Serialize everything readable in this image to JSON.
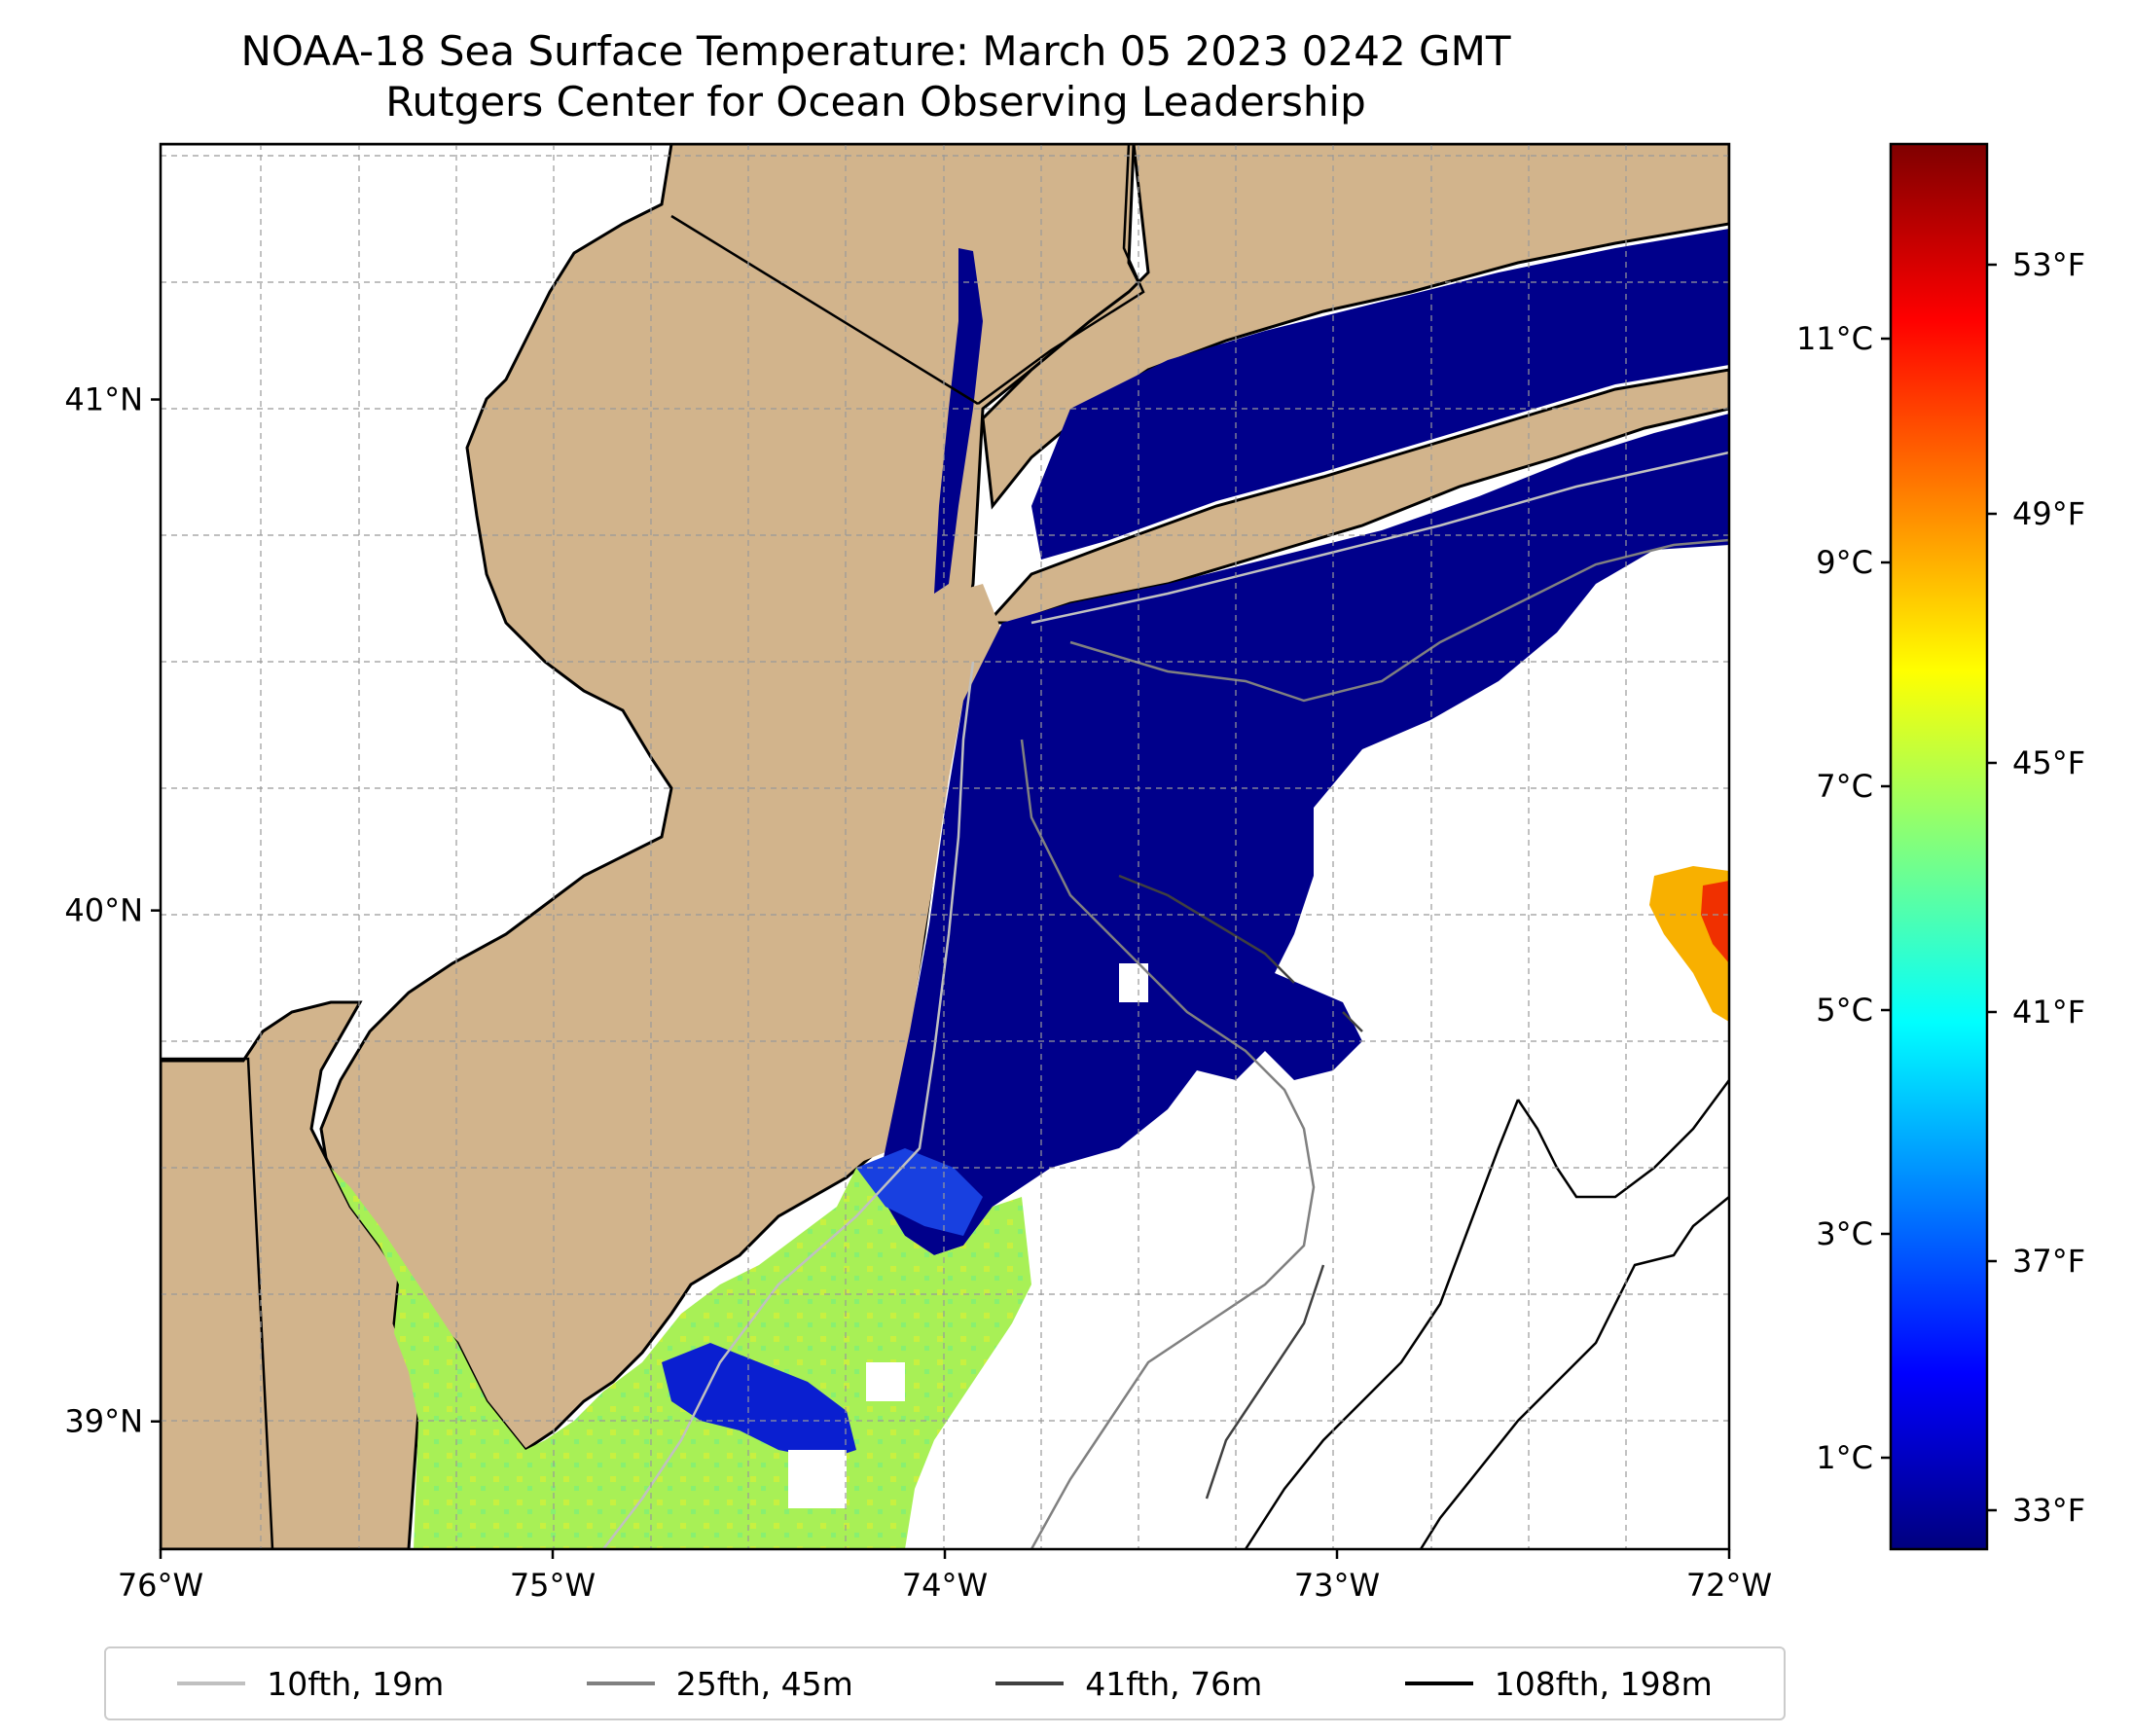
{
  "title": {
    "line1": "NOAA-18 Sea Surface Temperature: March 05 2023 0242 GMT",
    "line2": "Rutgers Center for Ocean Observing Leadership"
  },
  "map": {
    "lon_range": [
      -76,
      -72
    ],
    "lat_range": [
      38.75,
      41.5
    ],
    "lon_ticks": [
      {
        "value": -76,
        "label": "76°W"
      },
      {
        "value": -75,
        "label": "75°W"
      },
      {
        "value": -74,
        "label": "74°W"
      },
      {
        "value": -73,
        "label": "73°W"
      },
      {
        "value": -72,
        "label": "72°W"
      }
    ],
    "lat_ticks": [
      {
        "value": 39,
        "label": "39°N"
      },
      {
        "value": 40,
        "label": "40°N"
      },
      {
        "value": 41,
        "label": "41°N"
      }
    ],
    "colors": {
      "land": "#d2b48c",
      "no_data": "#ffffff",
      "cold_water": "#00008b",
      "warm_water": "#a8f056"
    }
  },
  "colorbar": {
    "colormap": "jet",
    "celsius_ticks": [
      "11°C",
      "9°C",
      "7°C",
      "5°C",
      "3°C",
      "1°C"
    ],
    "fahrenheit_ticks": [
      "53°F",
      "49°F",
      "45°F",
      "41°F",
      "37°F",
      "33°F"
    ]
  },
  "legend": [
    {
      "label": "10fth, 19m",
      "color": "#c0c0c0"
    },
    {
      "label": "25fth, 45m",
      "color": "#808080"
    },
    {
      "label": "41fth, 76m",
      "color": "#404040"
    },
    {
      "label": "108fth, 198m",
      "color": "#000000"
    }
  ]
}
